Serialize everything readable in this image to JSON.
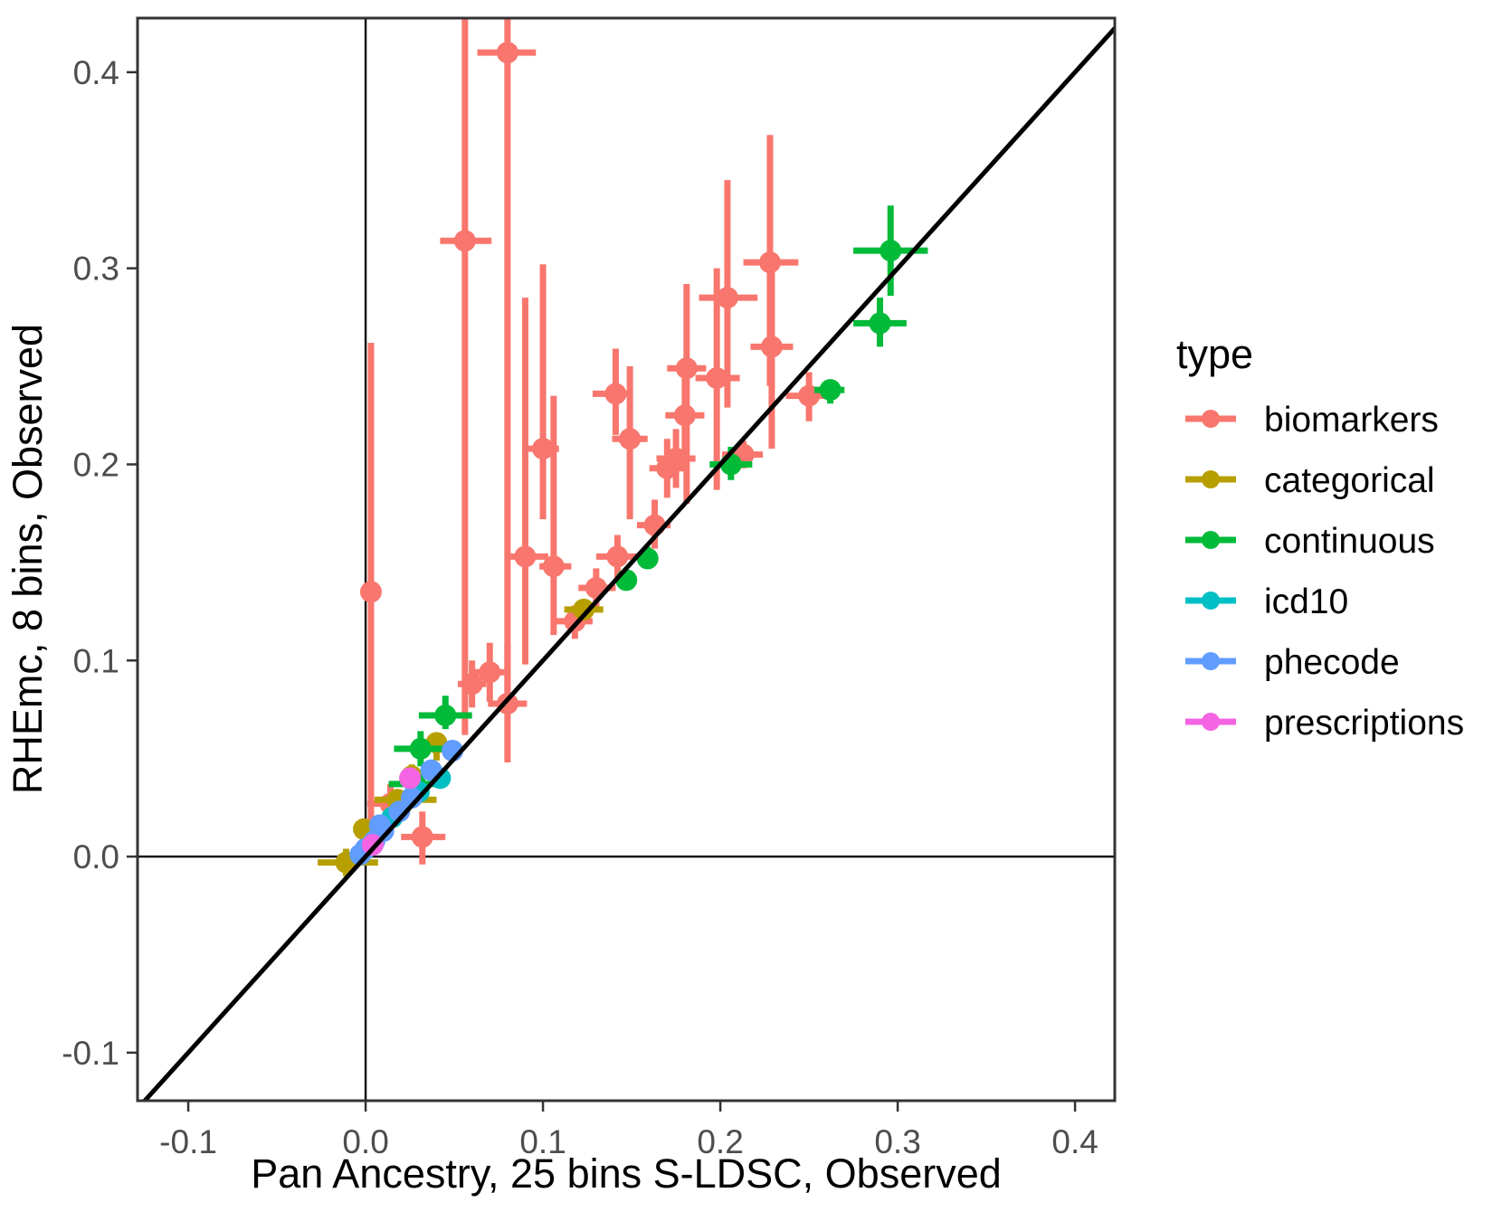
{
  "chart_data": {
    "type": "scatter",
    "title": "",
    "xlabel": "Pan Ancestry, 25 bins S-LDSC, Observed",
    "ylabel": "RHEmc, 8 bins, Observed",
    "xlim": [
      -0.1286,
      0.4224
    ],
    "ylim": [
      -0.1245,
      0.4276
    ],
    "xticks": [
      -0.1,
      0.0,
      0.1,
      0.2,
      0.3,
      0.4
    ],
    "yticks": [
      -0.1,
      0.0,
      0.1,
      0.2,
      0.3,
      0.4
    ],
    "xtick_labels": [
      "-0.1",
      "0.0",
      "0.1",
      "0.2",
      "0.3",
      "0.4"
    ],
    "ytick_labels": [
      "-0.1",
      "0.0",
      "0.1",
      "0.2",
      "0.3",
      "0.4"
    ],
    "grid": false,
    "reference_lines": {
      "identity_line": true,
      "vline_x": 0,
      "hline_y": 0
    },
    "legend": {
      "title": "type",
      "position": "right",
      "entries": [
        {
          "label": "biomarkers",
          "color": "#F8766D"
        },
        {
          "label": "categorical",
          "color": "#B79F00"
        },
        {
          "label": "continuous",
          "color": "#00BA38"
        },
        {
          "label": "icd10",
          "color": "#00BFC4"
        },
        {
          "label": "phecode",
          "color": "#619CFF"
        },
        {
          "label": "prescriptions",
          "color": "#F564E2"
        }
      ]
    },
    "series": [
      {
        "name": "biomarkers",
        "color": "#F8766D",
        "points": [
          {
            "x": 0.08,
            "y": 0.41,
            "xlo": 0.063,
            "xhi": 0.096,
            "ylo": 0.085,
            "yhi": 0.48
          },
          {
            "x": 0.056,
            "y": 0.314,
            "xlo": 0.042,
            "xhi": 0.071,
            "ylo": 0.062,
            "yhi": 0.48
          },
          {
            "x": 0.003,
            "y": 0.135,
            "xlo": null,
            "xhi": null,
            "ylo": 0.007,
            "yhi": 0.262
          },
          {
            "x": 0.228,
            "y": 0.303,
            "xlo": 0.213,
            "xhi": 0.244,
            "ylo": 0.24,
            "yhi": 0.368
          },
          {
            "x": 0.204,
            "y": 0.285,
            "xlo": 0.188,
            "xhi": 0.221,
            "ylo": 0.229,
            "yhi": 0.345
          },
          {
            "x": 0.229,
            "y": 0.26,
            "xlo": 0.217,
            "xhi": 0.241,
            "ylo": 0.208,
            "yhi": 0.308
          },
          {
            "x": 0.181,
            "y": 0.249,
            "xlo": 0.17,
            "xhi": 0.192,
            "ylo": 0.18,
            "yhi": 0.292
          },
          {
            "x": 0.198,
            "y": 0.244,
            "xlo": 0.186,
            "xhi": 0.211,
            "ylo": 0.187,
            "yhi": 0.3
          },
          {
            "x": 0.141,
            "y": 0.236,
            "xlo": 0.128,
            "xhi": 0.149,
            "ylo": 0.215,
            "yhi": 0.259
          },
          {
            "x": 0.25,
            "y": 0.235,
            "xlo": 0.237,
            "xhi": 0.264,
            "ylo": 0.222,
            "yhi": 0.247
          },
          {
            "x": 0.18,
            "y": 0.225,
            "xlo": 0.169,
            "xhi": 0.191,
            "ylo": 0.205,
            "yhi": 0.245
          },
          {
            "x": 0.149,
            "y": 0.213,
            "xlo": 0.139,
            "xhi": 0.159,
            "ylo": 0.172,
            "yhi": 0.25
          },
          {
            "x": 0.1,
            "y": 0.208,
            "xlo": 0.091,
            "xhi": 0.109,
            "ylo": 0.172,
            "yhi": 0.302
          },
          {
            "x": 0.213,
            "y": 0.205,
            "xlo": 0.201,
            "xhi": 0.224,
            "ylo": 0.198,
            "yhi": 0.212
          },
          {
            "x": 0.175,
            "y": 0.203,
            "xlo": 0.164,
            "xhi": 0.186,
            "ylo": 0.188,
            "yhi": 0.218
          },
          {
            "x": 0.17,
            "y": 0.198,
            "xlo": 0.16,
            "xhi": 0.18,
            "ylo": 0.183,
            "yhi": 0.213
          },
          {
            "x": 0.163,
            "y": 0.169,
            "xlo": 0.153,
            "xhi": 0.172,
            "ylo": 0.157,
            "yhi": 0.182
          },
          {
            "x": 0.09,
            "y": 0.153,
            "xlo": 0.081,
            "xhi": 0.103,
            "ylo": 0.098,
            "yhi": 0.285
          },
          {
            "x": 0.142,
            "y": 0.153,
            "xlo": 0.13,
            "xhi": 0.154,
            "ylo": 0.141,
            "yhi": 0.164
          },
          {
            "x": 0.106,
            "y": 0.148,
            "xlo": 0.098,
            "xhi": 0.116,
            "ylo": 0.113,
            "yhi": 0.235
          },
          {
            "x": 0.13,
            "y": 0.137,
            "xlo": 0.12,
            "xhi": 0.141,
            "ylo": 0.127,
            "yhi": 0.147
          },
          {
            "x": 0.118,
            "y": 0.12,
            "xlo": 0.107,
            "xhi": 0.128,
            "ylo": 0.111,
            "yhi": 0.128
          },
          {
            "x": 0.07,
            "y": 0.094,
            "xlo": 0.061,
            "xhi": 0.079,
            "ylo": 0.079,
            "yhi": 0.109
          },
          {
            "x": 0.06,
            "y": 0.088,
            "xlo": 0.052,
            "xhi": 0.068,
            "ylo": 0.076,
            "yhi": 0.1
          },
          {
            "x": 0.08,
            "y": 0.078,
            "xlo": 0.069,
            "xhi": 0.091,
            "ylo": 0.048,
            "yhi": 0.108
          },
          {
            "x": 0.032,
            "y": 0.01,
            "xlo": 0.02,
            "xhi": 0.045,
            "ylo": -0.004,
            "yhi": 0.023
          },
          {
            "x": 0.014,
            "y": 0.027,
            "xlo": 0.001,
            "xhi": 0.023,
            "ylo": 0.017,
            "yhi": 0.037
          }
        ]
      },
      {
        "name": "categorical",
        "color": "#B79F00",
        "points": [
          {
            "x": 0.123,
            "y": 0.126,
            "xlo": 0.112,
            "xhi": 0.134,
            "ylo": 0.121,
            "yhi": 0.131
          },
          {
            "x": 0.04,
            "y": 0.058,
            "xlo": 0.036,
            "xhi": 0.044,
            "ylo": 0.049,
            "yhi": 0.063
          },
          {
            "x": 0.026,
            "y": 0.041,
            "xlo": 0.022,
            "xhi": 0.03,
            "ylo": 0.037,
            "yhi": 0.047
          },
          {
            "x": 0.018,
            "y": 0.029,
            "xlo": 0.005,
            "xhi": 0.04,
            "ylo": 0.025,
            "yhi": 0.033
          },
          {
            "x": -0.001,
            "y": 0.014,
            "xlo": -0.007,
            "xhi": 0.005,
            "ylo": 0.01,
            "yhi": 0.018
          },
          {
            "x": -0.011,
            "y": -0.003,
            "xlo": -0.027,
            "xhi": 0.007,
            "ylo": -0.01,
            "yhi": 0.004
          }
        ]
      },
      {
        "name": "continuous",
        "color": "#00BA38",
        "points": [
          {
            "x": 0.296,
            "y": 0.309,
            "xlo": 0.275,
            "xhi": 0.317,
            "ylo": 0.286,
            "yhi": 0.332
          },
          {
            "x": 0.29,
            "y": 0.272,
            "xlo": 0.275,
            "xhi": 0.305,
            "ylo": 0.26,
            "yhi": 0.285
          },
          {
            "x": 0.262,
            "y": 0.238,
            "xlo": 0.253,
            "xhi": 0.27,
            "ylo": 0.231,
            "yhi": 0.243
          },
          {
            "x": 0.206,
            "y": 0.2,
            "xlo": 0.194,
            "xhi": 0.218,
            "ylo": 0.192,
            "yhi": 0.209
          },
          {
            "x": 0.159,
            "y": 0.152,
            "xlo": 0.154,
            "xhi": 0.164,
            "ylo": 0.147,
            "yhi": 0.158
          },
          {
            "x": 0.147,
            "y": 0.141,
            "xlo": 0.142,
            "xhi": 0.152,
            "ylo": 0.136,
            "yhi": 0.146
          },
          {
            "x": 0.045,
            "y": 0.072,
            "xlo": 0.03,
            "xhi": 0.06,
            "ylo": 0.065,
            "yhi": 0.082
          },
          {
            "x": 0.031,
            "y": 0.055,
            "xlo": 0.016,
            "xhi": 0.045,
            "ylo": 0.046,
            "yhi": 0.064
          },
          {
            "x": 0.028,
            "y": 0.037,
            "xlo": 0.013,
            "xhi": 0.045,
            "ylo": 0.033,
            "yhi": 0.041
          }
        ]
      },
      {
        "name": "icd10",
        "color": "#00BFC4",
        "points": [
          {
            "x": 0.042,
            "y": 0.04,
            "xlo": null,
            "xhi": null,
            "ylo": null,
            "yhi": null
          },
          {
            "x": 0.03,
            "y": 0.033,
            "xlo": null,
            "xhi": null,
            "ylo": null,
            "yhi": null
          },
          {
            "x": 0.015,
            "y": 0.02,
            "xlo": null,
            "xhi": null,
            "ylo": null,
            "yhi": null
          }
        ]
      },
      {
        "name": "phecode",
        "color": "#619CFF",
        "points": [
          {
            "x": 0.049,
            "y": 0.054,
            "xlo": null,
            "xhi": null,
            "ylo": null,
            "yhi": null
          },
          {
            "x": 0.037,
            "y": 0.044,
            "xlo": null,
            "xhi": null,
            "ylo": null,
            "yhi": null
          },
          {
            "x": 0.026,
            "y": 0.03,
            "xlo": null,
            "xhi": null,
            "ylo": null,
            "yhi": null
          },
          {
            "x": 0.019,
            "y": 0.023,
            "xlo": null,
            "xhi": null,
            "ylo": null,
            "yhi": null
          },
          {
            "x": 0.01,
            "y": 0.013,
            "xlo": null,
            "xhi": null,
            "ylo": null,
            "yhi": null
          },
          {
            "x": 0.008,
            "y": 0.016,
            "xlo": null,
            "xhi": null,
            "ylo": null,
            "yhi": null
          },
          {
            "x": 0.005,
            "y": 0.008,
            "xlo": null,
            "xhi": null,
            "ylo": null,
            "yhi": null
          },
          {
            "x": 0.0,
            "y": 0.004,
            "xlo": null,
            "xhi": null,
            "ylo": null,
            "yhi": null
          },
          {
            "x": -0.003,
            "y": 0.001,
            "xlo": null,
            "xhi": null,
            "ylo": null,
            "yhi": null
          }
        ]
      },
      {
        "name": "prescriptions",
        "color": "#F564E2",
        "points": [
          {
            "x": 0.025,
            "y": 0.04,
            "xlo": null,
            "xhi": null,
            "ylo": null,
            "yhi": null
          },
          {
            "x": 0.004,
            "y": 0.006,
            "xlo": null,
            "xhi": null,
            "ylo": null,
            "yhi": null
          }
        ]
      }
    ]
  }
}
